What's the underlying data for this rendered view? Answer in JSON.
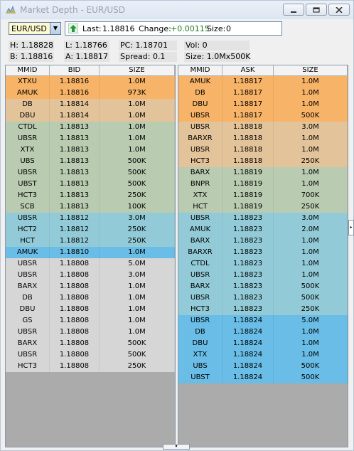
{
  "window": {
    "title": "Market Depth - EUR/USD"
  },
  "symbol": {
    "value": "EUR/USD"
  },
  "quote": {
    "last_label": "Last:",
    "last": "1.18816",
    "change_label": "Change:",
    "change": "+0.00115",
    "size_label": "Size:",
    "size": "0"
  },
  "stats": {
    "high": "H: 1.18828",
    "low": "L: 1.18766",
    "pc": "PC: 1.18701",
    "vol": "Vol: 0",
    "bid": "B: 1.18816",
    "ask": "A: 1.18817",
    "spread": "Spread: 0.1",
    "size": "Size: 1.0Mx500K"
  },
  "colors": {
    "orange": "#f7b367",
    "tan": "#e3c39a",
    "green": "#b9cbb0",
    "blue": "#92cbd7",
    "bright_blue": "#69bde6",
    "gray": "#d6d6d6"
  },
  "bid_table": {
    "headers": [
      "MMID",
      "BID",
      "SIZE"
    ],
    "rows": [
      {
        "mmid": "XTXU",
        "price": "1.18816",
        "size": "1.0M",
        "color": "orange"
      },
      {
        "mmid": "AMUK",
        "price": "1.18816",
        "size": "973K",
        "color": "orange"
      },
      {
        "mmid": "DB",
        "price": "1.18814",
        "size": "1.0M",
        "color": "tan"
      },
      {
        "mmid": "DBU",
        "price": "1.18814",
        "size": "1.0M",
        "color": "tan"
      },
      {
        "mmid": "CTDL",
        "price": "1.18813",
        "size": "1.0M",
        "color": "green"
      },
      {
        "mmid": "UBSR",
        "price": "1.18813",
        "size": "1.0M",
        "color": "green"
      },
      {
        "mmid": "XTX",
        "price": "1.18813",
        "size": "1.0M",
        "color": "green"
      },
      {
        "mmid": "UBS",
        "price": "1.18813",
        "size": "500K",
        "color": "green"
      },
      {
        "mmid": "UBSR",
        "price": "1.18813",
        "size": "500K",
        "color": "green"
      },
      {
        "mmid": "UBST",
        "price": "1.18813",
        "size": "500K",
        "color": "green"
      },
      {
        "mmid": "HCT3",
        "price": "1.18813",
        "size": "250K",
        "color": "green"
      },
      {
        "mmid": "SCB",
        "price": "1.18813",
        "size": "100K",
        "color": "green"
      },
      {
        "mmid": "UBSR",
        "price": "1.18812",
        "size": "3.0M",
        "color": "blue"
      },
      {
        "mmid": "HCT2",
        "price": "1.18812",
        "size": "250K",
        "color": "blue"
      },
      {
        "mmid": "HCT",
        "price": "1.18812",
        "size": "250K",
        "color": "blue"
      },
      {
        "mmid": "AMUK",
        "price": "1.18810",
        "size": "1.0M",
        "color": "bright_blue"
      },
      {
        "mmid": "UBSR",
        "price": "1.18808",
        "size": "5.0M",
        "color": "gray"
      },
      {
        "mmid": "UBSR",
        "price": "1.18808",
        "size": "3.0M",
        "color": "gray"
      },
      {
        "mmid": "BARX",
        "price": "1.18808",
        "size": "1.0M",
        "color": "gray"
      },
      {
        "mmid": "DB",
        "price": "1.18808",
        "size": "1.0M",
        "color": "gray"
      },
      {
        "mmid": "DBU",
        "price": "1.18808",
        "size": "1.0M",
        "color": "gray"
      },
      {
        "mmid": "GS",
        "price": "1.18808",
        "size": "1.0M",
        "color": "gray"
      },
      {
        "mmid": "UBSR",
        "price": "1.18808",
        "size": "1.0M",
        "color": "gray"
      },
      {
        "mmid": "BARX",
        "price": "1.18808",
        "size": "500K",
        "color": "gray"
      },
      {
        "mmid": "UBSR",
        "price": "1.18808",
        "size": "500K",
        "color": "gray"
      },
      {
        "mmid": "HCT3",
        "price": "1.18808",
        "size": "250K",
        "color": "gray"
      }
    ]
  },
  "ask_table": {
    "headers": [
      "MMID",
      "ASK",
      "SIZE"
    ],
    "rows": [
      {
        "mmid": "AMUK",
        "price": "1.18817",
        "size": "1.0M",
        "color": "orange"
      },
      {
        "mmid": "DB",
        "price": "1.18817",
        "size": "1.0M",
        "color": "orange"
      },
      {
        "mmid": "DBU",
        "price": "1.18817",
        "size": "1.0M",
        "color": "orange"
      },
      {
        "mmid": "UBSR",
        "price": "1.18817",
        "size": "500K",
        "color": "orange"
      },
      {
        "mmid": "UBSR",
        "price": "1.18818",
        "size": "3.0M",
        "color": "tan"
      },
      {
        "mmid": "BARXR",
        "price": "1.18818",
        "size": "1.0M",
        "color": "tan"
      },
      {
        "mmid": "UBSR",
        "price": "1.18818",
        "size": "1.0M",
        "color": "tan"
      },
      {
        "mmid": "HCT3",
        "price": "1.18818",
        "size": "250K",
        "color": "tan"
      },
      {
        "mmid": "BARX",
        "price": "1.18819",
        "size": "1.0M",
        "color": "green"
      },
      {
        "mmid": "BNPR",
        "price": "1.18819",
        "size": "1.0M",
        "color": "green"
      },
      {
        "mmid": "XTX",
        "price": "1.18819",
        "size": "700K",
        "color": "green"
      },
      {
        "mmid": "HCT",
        "price": "1.18819",
        "size": "250K",
        "color": "green"
      },
      {
        "mmid": "UBSR",
        "price": "1.18823",
        "size": "3.0M",
        "color": "blue"
      },
      {
        "mmid": "AMUK",
        "price": "1.18823",
        "size": "2.0M",
        "color": "blue"
      },
      {
        "mmid": "BARX",
        "price": "1.18823",
        "size": "1.0M",
        "color": "blue"
      },
      {
        "mmid": "BARXR",
        "price": "1.18823",
        "size": "1.0M",
        "color": "blue"
      },
      {
        "mmid": "CTDL",
        "price": "1.18823",
        "size": "1.0M",
        "color": "blue"
      },
      {
        "mmid": "UBSR",
        "price": "1.18823",
        "size": "1.0M",
        "color": "blue"
      },
      {
        "mmid": "BARX",
        "price": "1.18823",
        "size": "500K",
        "color": "blue"
      },
      {
        "mmid": "UBSR",
        "price": "1.18823",
        "size": "500K",
        "color": "blue"
      },
      {
        "mmid": "HCT3",
        "price": "1.18823",
        "size": "250K",
        "color": "blue"
      },
      {
        "mmid": "UBSR",
        "price": "1.18824",
        "size": "5.0M",
        "color": "bright_blue"
      },
      {
        "mmid": "DB",
        "price": "1.18824",
        "size": "1.0M",
        "color": "bright_blue"
      },
      {
        "mmid": "DBU",
        "price": "1.18824",
        "size": "1.0M",
        "color": "bright_blue"
      },
      {
        "mmid": "XTX",
        "price": "1.18824",
        "size": "1.0M",
        "color": "bright_blue"
      },
      {
        "mmid": "UBS",
        "price": "1.18824",
        "size": "500K",
        "color": "bright_blue"
      },
      {
        "mmid": "UBST",
        "price": "1.18824",
        "size": "500K",
        "color": "bright_blue"
      }
    ]
  }
}
